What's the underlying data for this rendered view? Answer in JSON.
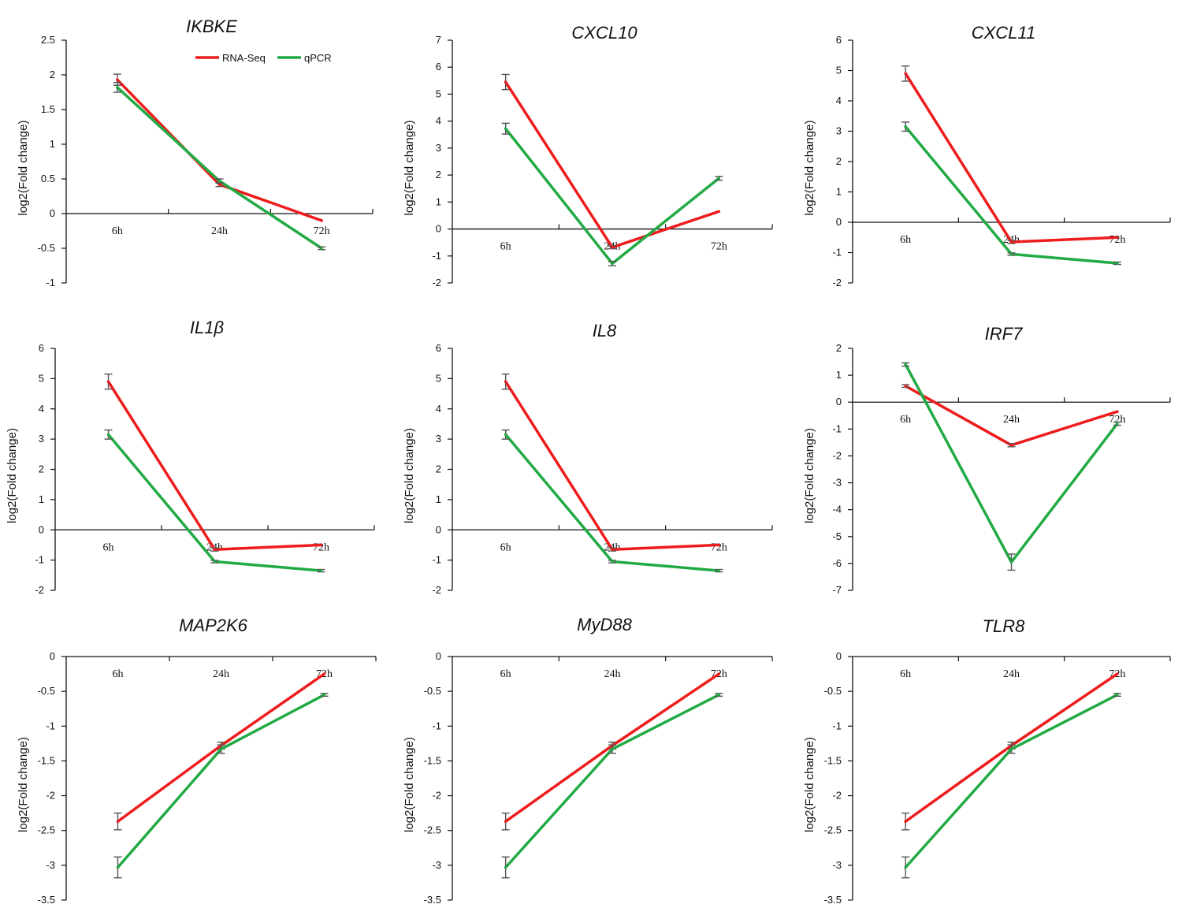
{
  "legend": [
    {
      "name": "RNA-Seq",
      "color": "#ee1c1c"
    },
    {
      "name": "qPCR",
      "color": "#22aa44"
    }
  ],
  "error_bar_color": "#555555",
  "chart_data": [
    {
      "type": "line",
      "title": "IKBKE",
      "ylabel": "log2(Fold change)",
      "categories": [
        "6h",
        "24h",
        "72h"
      ],
      "ylim": [
        -1,
        2.5
      ],
      "yticks": [
        "2.5",
        "2",
        "1.5",
        "1",
        "0.5",
        "0",
        "-0.5",
        "-1"
      ],
      "series": [
        {
          "name": "RNA-Seq",
          "values": [
            1.93,
            0.42,
            -0.1
          ],
          "errors": [
            0.08,
            0.03,
            0
          ]
        },
        {
          "name": "qPCR",
          "values": [
            1.82,
            0.47,
            -0.5
          ],
          "errors": [
            0.07,
            0.03,
            0.02
          ]
        }
      ]
    },
    {
      "type": "line",
      "title": "CXCL10",
      "ylabel": "log2(Fold change)",
      "categories": [
        "6h",
        "24h",
        "72h"
      ],
      "ylim": [
        -2,
        7
      ],
      "yticks": [
        "7",
        "6",
        "5",
        "4",
        "3",
        "2",
        "1",
        "0",
        "-1",
        "-2"
      ],
      "series": [
        {
          "name": "RNA-Seq",
          "values": [
            5.45,
            -0.68,
            0.65
          ],
          "errors": [
            0.28,
            0.05,
            0
          ]
        },
        {
          "name": "qPCR",
          "values": [
            3.72,
            -1.28,
            1.88
          ],
          "errors": [
            0.2,
            0.08,
            0.07
          ]
        }
      ]
    },
    {
      "type": "line",
      "title": "CXCL11",
      "ylabel": "log2(Fold change)",
      "categories": [
        "6h",
        "24h",
        "72h"
      ],
      "ylim": [
        -2,
        6
      ],
      "yticks": [
        "6",
        "5",
        "4",
        "3",
        "2",
        "1",
        "0",
        "-1",
        "-2"
      ],
      "series": [
        {
          "name": "RNA-Seq",
          "values": [
            4.9,
            -0.65,
            -0.5
          ],
          "errors": [
            0.25,
            0.05,
            0
          ]
        },
        {
          "name": "qPCR",
          "values": [
            3.15,
            -1.05,
            -1.35
          ],
          "errors": [
            0.15,
            0.04,
            0.04
          ]
        }
      ]
    },
    {
      "type": "line",
      "title": "IL1β",
      "ylabel": "log2(Fold change)",
      "categories": [
        "6h",
        "24h",
        "72h"
      ],
      "ylim": [
        -2,
        6
      ],
      "yticks": [
        "6",
        "5",
        "4",
        "3",
        "2",
        "1",
        "0",
        "-1",
        "-2"
      ],
      "series": [
        {
          "name": "RNA-Seq",
          "values": [
            4.9,
            -0.65,
            -0.5
          ],
          "errors": [
            0.25,
            0.05,
            0
          ]
        },
        {
          "name": "qPCR",
          "values": [
            3.15,
            -1.05,
            -1.35
          ],
          "errors": [
            0.15,
            0.04,
            0.04
          ]
        }
      ]
    },
    {
      "type": "line",
      "title": "IL8",
      "ylabel": "log2(Fold change)",
      "categories": [
        "6h",
        "24h",
        "72h"
      ],
      "ylim": [
        -2,
        6
      ],
      "yticks": [
        "6",
        "5",
        "4",
        "3",
        "2",
        "1",
        "0",
        "-1",
        "-2"
      ],
      "series": [
        {
          "name": "RNA-Seq",
          "values": [
            4.9,
            -0.65,
            -0.5
          ],
          "errors": [
            0.25,
            0.05,
            0
          ]
        },
        {
          "name": "qPCR",
          "values": [
            3.15,
            -1.05,
            -1.35
          ],
          "errors": [
            0.15,
            0.04,
            0.04
          ]
        }
      ]
    },
    {
      "type": "line",
      "title": "IRF7",
      "ylabel": "log2(Fold change)",
      "categories": [
        "6h",
        "24h",
        "72h"
      ],
      "ylim": [
        -7,
        2
      ],
      "yticks": [
        "2",
        "1",
        "0",
        "-1",
        "-2",
        "-3",
        "-4",
        "-5",
        "-6",
        "-7"
      ],
      "series": [
        {
          "name": "RNA-Seq",
          "values": [
            0.6,
            -1.6,
            -0.35
          ],
          "errors": [
            0.05,
            0.06,
            0
          ]
        },
        {
          "name": "qPCR",
          "values": [
            1.4,
            -5.95,
            -0.8
          ],
          "errors": [
            0.06,
            0.3,
            0.06
          ]
        }
      ]
    },
    {
      "type": "line",
      "title": "MAP2K6",
      "ylabel": "log2(Fold change)",
      "categories": [
        "6h",
        "24h",
        "72h"
      ],
      "ylim": [
        -3.5,
        0
      ],
      "yticks": [
        "0",
        "-0.5",
        "-1",
        "-1.5",
        "-2",
        "-2.5",
        "-3",
        "-3.5"
      ],
      "series": [
        {
          "name": "RNA-Seq",
          "values": [
            -2.37,
            -1.28,
            -0.25
          ],
          "errors": [
            0.12,
            0.05,
            0
          ]
        },
        {
          "name": "qPCR",
          "values": [
            -3.03,
            -1.33,
            -0.55
          ],
          "errors": [
            0.15,
            0.06,
            0.02
          ]
        }
      ]
    },
    {
      "type": "line",
      "title": "MyD88",
      "ylabel": "log2(Fold change)",
      "categories": [
        "6h",
        "24h",
        "72h"
      ],
      "ylim": [
        -3.5,
        0
      ],
      "yticks": [
        "0",
        "-0.5",
        "-1",
        "-1.5",
        "-2",
        "-2.5",
        "-3",
        "-3.5"
      ],
      "series": [
        {
          "name": "RNA-Seq",
          "values": [
            -2.37,
            -1.28,
            -0.25
          ],
          "errors": [
            0.12,
            0.05,
            0
          ]
        },
        {
          "name": "qPCR",
          "values": [
            -3.03,
            -1.33,
            -0.55
          ],
          "errors": [
            0.15,
            0.06,
            0.02
          ]
        }
      ]
    },
    {
      "type": "line",
      "title": "TLR8",
      "ylabel": "log2(Fold change)",
      "categories": [
        "6h",
        "24h",
        "72h"
      ],
      "ylim": [
        -3.5,
        0
      ],
      "yticks": [
        "0",
        "-0.5",
        "-1",
        "-1.5",
        "-2",
        "-2.5",
        "-3",
        "-3.5"
      ],
      "series": [
        {
          "name": "RNA-Seq",
          "values": [
            -2.37,
            -1.28,
            -0.25
          ],
          "errors": [
            0.12,
            0.05,
            0
          ]
        },
        {
          "name": "qPCR",
          "values": [
            -3.03,
            -1.33,
            -0.55
          ],
          "errors": [
            0.15,
            0.06,
            0.02
          ]
        }
      ]
    }
  ]
}
